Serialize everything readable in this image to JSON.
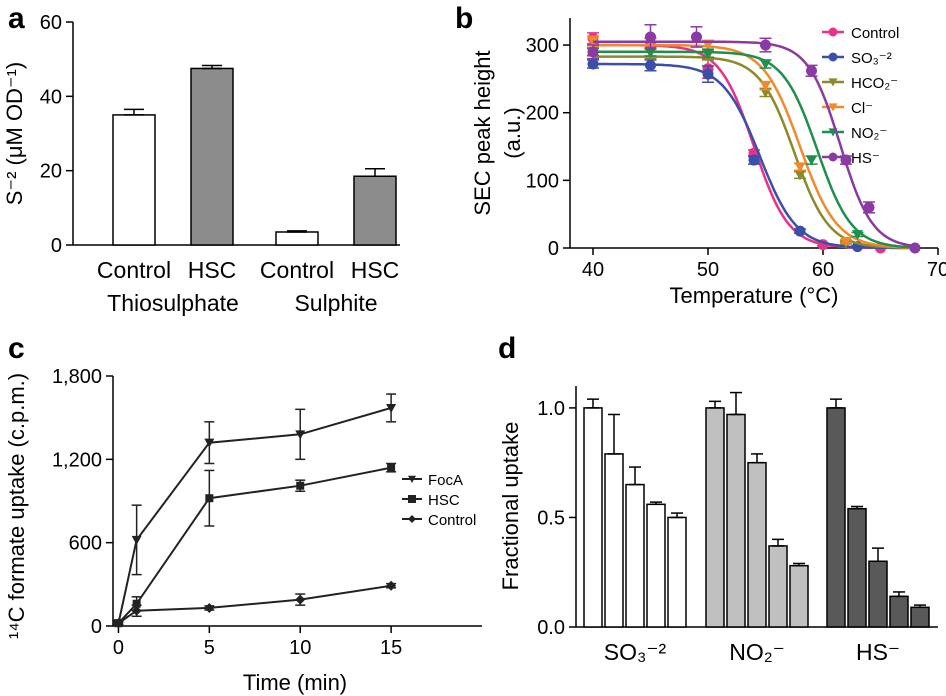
{
  "chart_data": [
    {
      "panel": "a",
      "type": "bar",
      "ylabel": "S⁻² (μM OD⁻¹)",
      "ylim": [
        0,
        60
      ],
      "yticks": [
        0,
        20,
        40,
        60
      ],
      "categories": [
        "Control",
        "HSC",
        "Control",
        "HSC"
      ],
      "groups": [
        "Thiosulphate",
        "Sulphite"
      ],
      "values": [
        35,
        47.5,
        3.5,
        18.5
      ],
      "errors": [
        1.5,
        0.8,
        0.3,
        2
      ],
      "fills": [
        "#ffffff",
        "#8c8c8c",
        "#ffffff",
        "#8c8c8c"
      ]
    },
    {
      "panel": "b",
      "type": "line",
      "xlabel": "Temperature (°C)",
      "ylabel": "SEC peak height (a.u.)",
      "xlim": [
        38,
        70
      ],
      "ylim": [
        0,
        340
      ],
      "xticks": [
        40,
        50,
        60,
        70
      ],
      "yticks": [
        0,
        100,
        200,
        300
      ],
      "legend_position": "top-right",
      "series": [
        {
          "name": "Control",
          "color": "#e8318a",
          "marker": "circle",
          "top": 300,
          "tm": 54,
          "k": 1.5,
          "points": [
            [
              40,
              310,
              8
            ],
            [
              45,
              300,
              10
            ],
            [
              50,
              265,
              14
            ],
            [
              54,
              140,
              5
            ],
            [
              60,
              5,
              2
            ],
            [
              65,
              0,
              0
            ]
          ]
        },
        {
          "name": "SO₃⁻²",
          "color": "#3b4fa8",
          "marker": "circle",
          "top": 272,
          "tm": 54.5,
          "k": 1.6,
          "points": [
            [
              40,
              272,
              6
            ],
            [
              45,
              270,
              8
            ],
            [
              50,
              257,
              12
            ],
            [
              54,
              130,
              6
            ],
            [
              58,
              25,
              3
            ],
            [
              63,
              2,
              1
            ]
          ]
        },
        {
          "name": "HCO₂⁻",
          "color": "#8a8a2a",
          "marker": "triangle-down",
          "top": 283,
          "tm": 57.5,
          "k": 1.5,
          "points": [
            [
              40,
              290,
              6
            ],
            [
              45,
              288,
              8
            ],
            [
              50,
              285,
              7
            ],
            [
              55,
              230,
              6
            ],
            [
              58,
              108,
              5
            ],
            [
              62,
              8,
              2
            ]
          ]
        },
        {
          "name": "Cl⁻",
          "color": "#f08a2a",
          "marker": "triangle-down",
          "top": 300,
          "tm": 58,
          "k": 1.6,
          "points": [
            [
              40,
              305,
              8
            ],
            [
              45,
              303,
              8
            ],
            [
              50,
              300,
              7
            ],
            [
              55,
              240,
              6
            ],
            [
              58,
              120,
              5
            ],
            [
              62,
              10,
              2
            ]
          ]
        },
        {
          "name": "NO₂⁻",
          "color": "#1f8f4f",
          "marker": "triangle-down",
          "top": 290,
          "tm": 59.5,
          "k": 1.5,
          "points": [
            [
              40,
              290,
              5
            ],
            [
              45,
              290,
              6
            ],
            [
              50,
              288,
              6
            ],
            [
              55,
              272,
              6
            ],
            [
              59,
              130,
              6
            ],
            [
              63,
              20,
              3
            ]
          ]
        },
        {
          "name": "HS⁻",
          "color": "#8b3aa3",
          "marker": "circle",
          "top": 305,
          "tm": 61.5,
          "k": 1.4,
          "points": [
            [
              40,
              290,
              10
            ],
            [
              45,
              312,
              18
            ],
            [
              49,
              312,
              15
            ],
            [
              55,
              300,
              10
            ],
            [
              59,
              262,
              8
            ],
            [
              62,
              130,
              6
            ],
            [
              64,
              60,
              8
            ],
            [
              68,
              0,
              0
            ]
          ]
        }
      ]
    },
    {
      "panel": "c",
      "type": "line",
      "xlabel": "Time (min)",
      "ylabel": "¹⁴C formate uptake (c.p.m.)",
      "xlim": [
        -0.3,
        20
      ],
      "ylim": [
        0,
        1800
      ],
      "xticks": [
        0,
        5,
        10,
        15
      ],
      "yticks": [
        0,
        600,
        1200,
        1800
      ],
      "ytick_labels": [
        "0",
        "600",
        "1,200",
        "1,800"
      ],
      "legend_position": "right",
      "series": [
        {
          "name": "FocA",
          "marker": "triangle-down",
          "x": [
            0,
            1,
            5,
            10,
            15
          ],
          "values": [
            20,
            620,
            1320,
            1380,
            1570
          ],
          "errors": [
            15,
            250,
            150,
            180,
            100
          ]
        },
        {
          "name": "HSC",
          "marker": "square",
          "x": [
            0,
            1,
            5,
            10,
            15
          ],
          "values": [
            20,
            160,
            920,
            1010,
            1140
          ],
          "errors": [
            15,
            50,
            200,
            40,
            30
          ]
        },
        {
          "name": "Control",
          "marker": "diamond",
          "x": [
            0,
            1,
            5,
            10,
            15
          ],
          "values": [
            20,
            110,
            130,
            190,
            290
          ],
          "errors": [
            10,
            40,
            15,
            40,
            15
          ]
        }
      ]
    },
    {
      "panel": "d",
      "type": "bar",
      "ylabel": "Fractional uptake",
      "ylim": [
        0,
        1.1
      ],
      "yticks": [
        0.0,
        0.5,
        1.0
      ],
      "ytick_labels": [
        "0.0",
        "0.5",
        "1.0"
      ],
      "groups": [
        {
          "name": "SO₃⁻²",
          "fill": "#ffffff",
          "values": [
            1.0,
            0.79,
            0.65,
            0.56,
            0.5
          ],
          "errors": [
            0.04,
            0.18,
            0.08,
            0.01,
            0.02
          ]
        },
        {
          "name": "NO₂⁻",
          "fill": "#c0c0c0",
          "values": [
            1.0,
            0.97,
            0.75,
            0.37,
            0.28
          ],
          "errors": [
            0.03,
            0.1,
            0.04,
            0.03,
            0.01
          ]
        },
        {
          "name": "HS⁻",
          "fill": "#595959",
          "values": [
            1.0,
            0.54,
            0.3,
            0.14,
            0.09
          ],
          "errors": [
            0.04,
            0.01,
            0.06,
            0.02,
            0.01
          ]
        }
      ]
    }
  ]
}
